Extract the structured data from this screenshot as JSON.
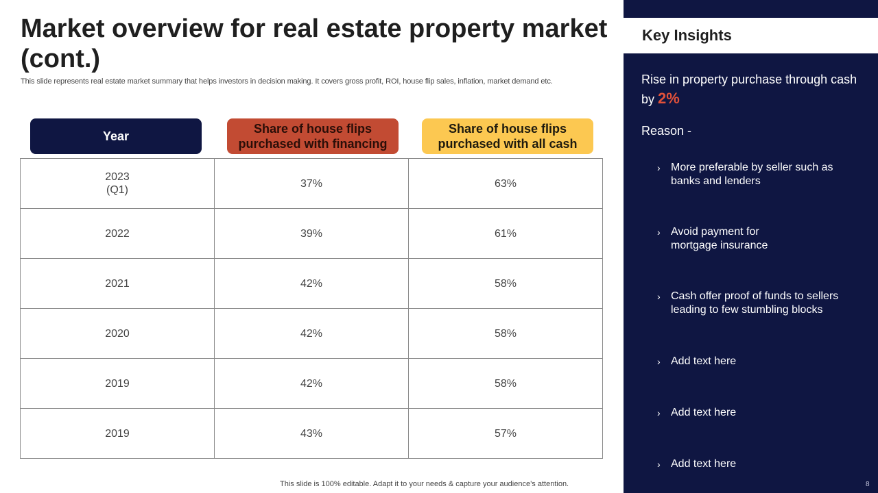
{
  "slide": {
    "title": "Market overview for real estate property market (cont.)",
    "subtitle": "This slide represents real estate market summary that helps investors in decision making. It covers gross profit, ROI,  house flip sales, inflation, market demand etc.",
    "footer": "This slide is 100% editable. Adapt it to your needs & capture your audience’s attention.",
    "page_number": "8"
  },
  "table": {
    "headers": {
      "year": "Year",
      "financing": "Share of house flips purchased with financing",
      "cash": "Share of house flips purchased with all cash"
    },
    "rows": [
      {
        "year": "2023",
        "year_sub": "(Q1)",
        "financing": "37%",
        "cash": "63%"
      },
      {
        "year": "2022",
        "year_sub": "",
        "financing": "39%",
        "cash": "61%"
      },
      {
        "year": "2021",
        "year_sub": "",
        "financing": "42%",
        "cash": "58%"
      },
      {
        "year": "2020",
        "year_sub": "",
        "financing": "42%",
        "cash": "58%"
      },
      {
        "year": "2019",
        "year_sub": "",
        "financing": "42%",
        "cash": "58%"
      },
      {
        "year": "2019",
        "year_sub": "",
        "financing": "43%",
        "cash": "57%"
      }
    ]
  },
  "insights": {
    "heading": "Key Insights",
    "statement": "Rise in property purchase through cash by",
    "percent": "2%",
    "reason_label": "Reason -",
    "bullets": [
      "More preferable by seller such as banks and lenders",
      "Avoid payment for mortgage insurance",
      "Cash offer proof of funds to sellers leading to few stumbling blocks",
      "Add text here",
      "Add text here",
      "Add text here"
    ],
    "bullet_glyph": "›"
  },
  "colors": {
    "navy": "#0f1642",
    "red": "#c24b33",
    "yellow": "#fcc851",
    "accent_percent": "#e2513a"
  }
}
